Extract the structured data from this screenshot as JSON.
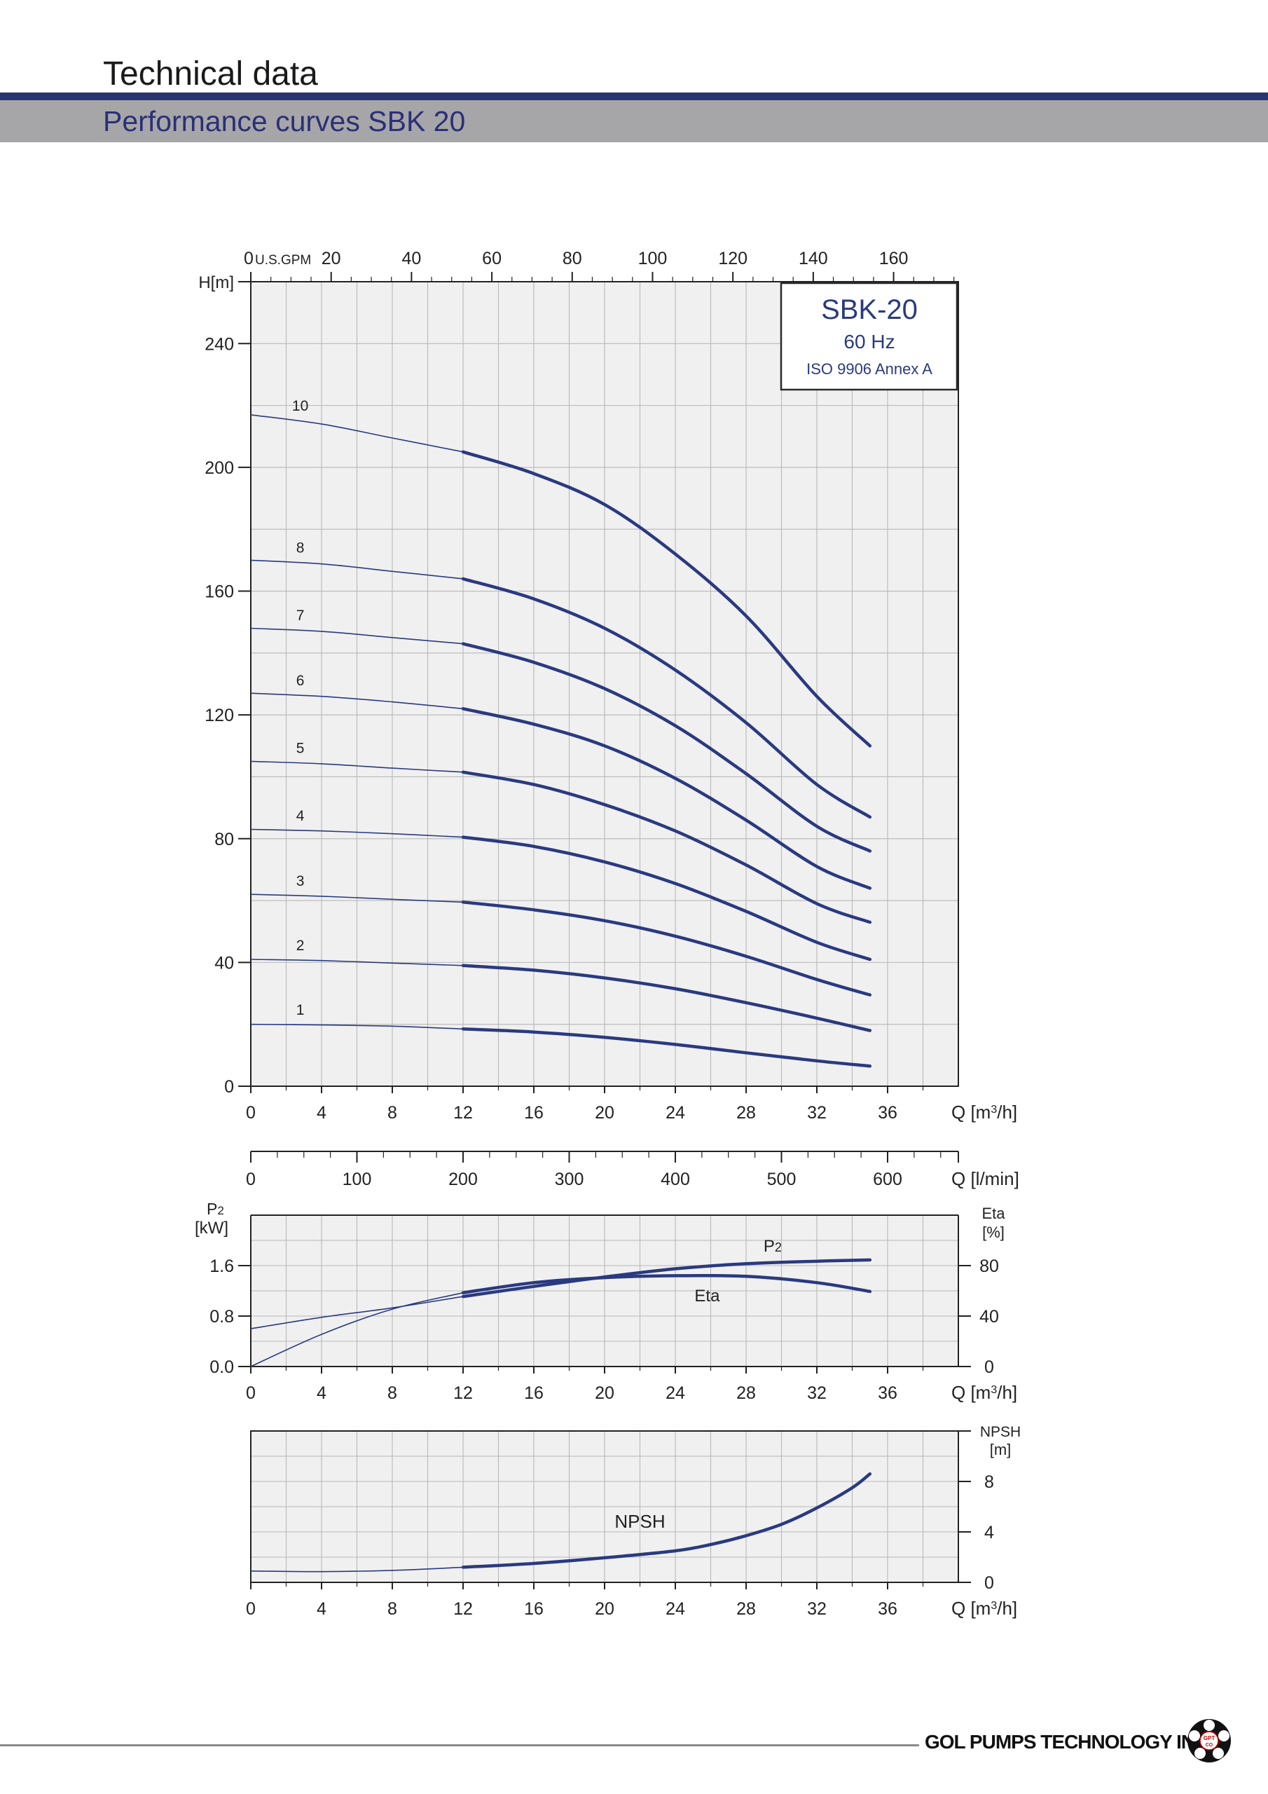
{
  "header": {
    "title": "Technical data",
    "subtitle": "Performance curves SBK 20"
  },
  "legend_box": {
    "model": "SBK-20",
    "frequency": "60 Hz",
    "standard": "ISO 9906 Annex A"
  },
  "footer": {
    "company": "GOL PUMPS TECHNOLOGY INC",
    "logo_text": "GPT CO"
  },
  "colors": {
    "curve": "#2a3a80",
    "grid": "#b8b8b8",
    "plot_bg": "#f0f0f0",
    "header_bar": "#2a3470"
  },
  "chart_data": [
    {
      "type": "line",
      "panel": "head",
      "title": "",
      "xlabel": "Q [m³/h]",
      "ylabel": "H[m]",
      "xlim": [
        0,
        40
      ],
      "ylim": [
        0,
        260
      ],
      "x_ticks": [
        0,
        4,
        8,
        12,
        16,
        20,
        24,
        28,
        32,
        36
      ],
      "y_ticks": [
        0,
        40,
        80,
        120,
        160,
        200,
        240
      ],
      "secondary_x": {
        "label": "U.S.GPM",
        "zero_label": "0",
        "ticks": [
          20,
          40,
          60,
          80,
          100,
          120,
          140,
          160
        ]
      },
      "grid": true,
      "recommended_range": [
        12,
        35
      ],
      "x": [
        0,
        4,
        8,
        12,
        16,
        20,
        24,
        28,
        32,
        35
      ],
      "series": [
        {
          "name": "1",
          "values": [
            20,
            19.8,
            19.4,
            18.5,
            17.5,
            15.8,
            13.5,
            10.8,
            8.2,
            6.5
          ]
        },
        {
          "name": "2",
          "values": [
            41,
            40.6,
            39.8,
            39,
            37.5,
            35,
            31.5,
            27,
            22,
            18
          ]
        },
        {
          "name": "3",
          "values": [
            62,
            61.4,
            60.4,
            59.5,
            57,
            53.5,
            48.5,
            42,
            34.5,
            29.5
          ]
        },
        {
          "name": "4",
          "values": [
            83,
            82.5,
            81.6,
            80.5,
            77.5,
            72.5,
            65.5,
            56.5,
            46.5,
            41
          ]
        },
        {
          "name": "5",
          "values": [
            105,
            104.2,
            102.8,
            101.5,
            97.5,
            91,
            82.5,
            71.5,
            59,
            53
          ]
        },
        {
          "name": "6",
          "values": [
            127,
            126,
            124.2,
            122,
            117,
            110,
            99.5,
            86,
            71,
            64
          ]
        },
        {
          "name": "7",
          "values": [
            148,
            147,
            145,
            143,
            137,
            128.5,
            116.5,
            101,
            84,
            76
          ]
        },
        {
          "name": "8",
          "values": [
            170,
            168.8,
            166.4,
            164,
            157.5,
            148,
            134.5,
            117.5,
            97.5,
            87
          ]
        },
        {
          "name": "10",
          "values": [
            217,
            214,
            209.5,
            205,
            198,
            188,
            172,
            152,
            126,
            110
          ]
        }
      ]
    },
    {
      "type": "line",
      "panel": "flow_lmin_scale",
      "xlabel": "Q [l/min]",
      "x_ticks": [
        0,
        100,
        200,
        300,
        400,
        500,
        600
      ]
    },
    {
      "type": "line",
      "panel": "power_efficiency",
      "xlabel": "Q [m³/h]",
      "ylabel_left": "P2 [kW]",
      "ylabel_right": "Eta [%]",
      "xlim": [
        0,
        40
      ],
      "ylim_left": [
        0,
        2.4
      ],
      "ylim_right": [
        0,
        120
      ],
      "y_ticks_left": [
        "0.0",
        "0.8",
        "1.6"
      ],
      "y_ticks_right": [
        0,
        40,
        80
      ],
      "x_ticks": [
        0,
        4,
        8,
        12,
        16,
        20,
        24,
        28,
        32,
        36
      ],
      "x": [
        0,
        4,
        8,
        12,
        16,
        20,
        24,
        28,
        32,
        35
      ],
      "series": [
        {
          "name": "P2",
          "axis": "left",
          "values": [
            0.6,
            0.78,
            0.93,
            1.11,
            1.27,
            1.42,
            1.55,
            1.63,
            1.67,
            1.69
          ]
        },
        {
          "name": "Eta",
          "axis": "right",
          "values": [
            0,
            25.5,
            45.5,
            58.5,
            66.5,
            70.5,
            72,
            71.5,
            66.5,
            59.5
          ]
        }
      ]
    },
    {
      "type": "line",
      "panel": "npsh",
      "xlabel": "Q [m³/h]",
      "ylabel_right": "NPSH [m]",
      "xlim": [
        0,
        40
      ],
      "ylim": [
        0,
        12
      ],
      "y_ticks_right": [
        0,
        4,
        8
      ],
      "x_ticks": [
        0,
        4,
        8,
        12,
        16,
        20,
        24,
        28,
        32,
        36
      ],
      "x": [
        0,
        4,
        8,
        12,
        16,
        20,
        24,
        26,
        28,
        30,
        32,
        34,
        35
      ],
      "series": [
        {
          "name": "NPSH",
          "values": [
            0.9,
            0.85,
            0.95,
            1.2,
            1.5,
            1.95,
            2.5,
            3.0,
            3.7,
            4.6,
            5.9,
            7.5,
            8.6
          ]
        }
      ]
    }
  ]
}
